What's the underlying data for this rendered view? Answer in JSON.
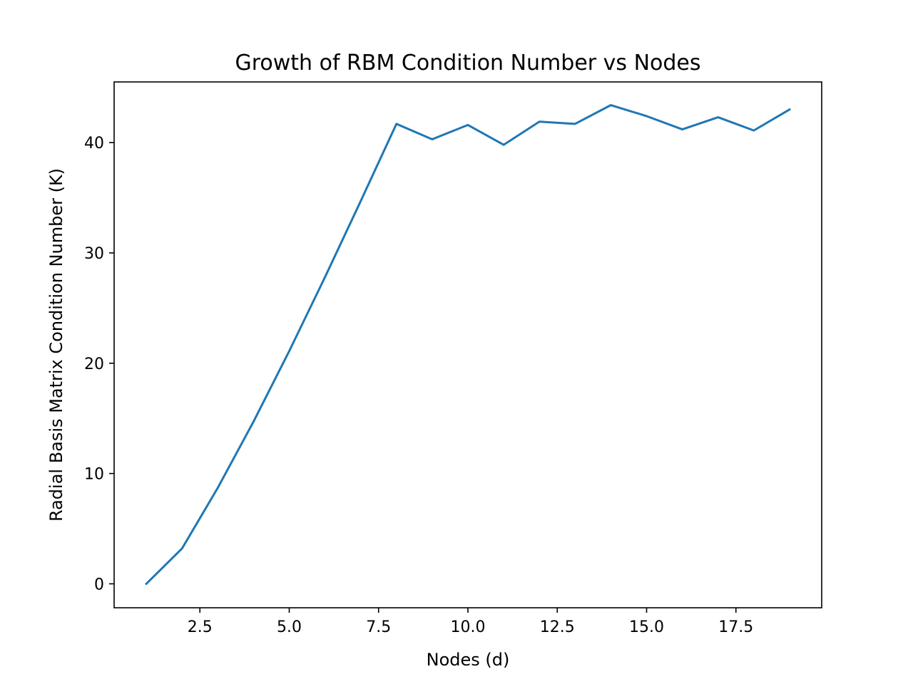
{
  "chart_data": {
    "type": "line",
    "title": "Growth of RBM Condition Number vs Nodes",
    "xlabel": "Nodes (d)",
    "ylabel": "Radial Basis Matrix Condition Number (K)",
    "xlim": [
      0.1,
      19.9
    ],
    "ylim": [
      -2.17,
      45.5
    ],
    "xticks": [
      2.5,
      5.0,
      7.5,
      10.0,
      12.5,
      15.0,
      17.5
    ],
    "xtick_labels": [
      "2.5",
      "5.0",
      "7.5",
      "10.0",
      "12.5",
      "15.0",
      "17.5"
    ],
    "yticks": [
      0,
      10,
      20,
      30,
      40
    ],
    "ytick_labels": [
      "0",
      "10",
      "20",
      "30",
      "40"
    ],
    "grid": false,
    "series": [
      {
        "color": "#1f77b4",
        "x": [
          1,
          2,
          3,
          4,
          5,
          6,
          7,
          8,
          9,
          10,
          11,
          12,
          13,
          14,
          15,
          16,
          17,
          18,
          19
        ],
        "y": [
          0.0,
          3.2,
          8.7,
          14.7,
          21.1,
          27.8,
          34.7,
          41.7,
          40.3,
          41.6,
          39.8,
          41.9,
          41.7,
          43.4,
          42.4,
          41.2,
          42.3,
          41.1,
          43.0
        ]
      }
    ]
  }
}
